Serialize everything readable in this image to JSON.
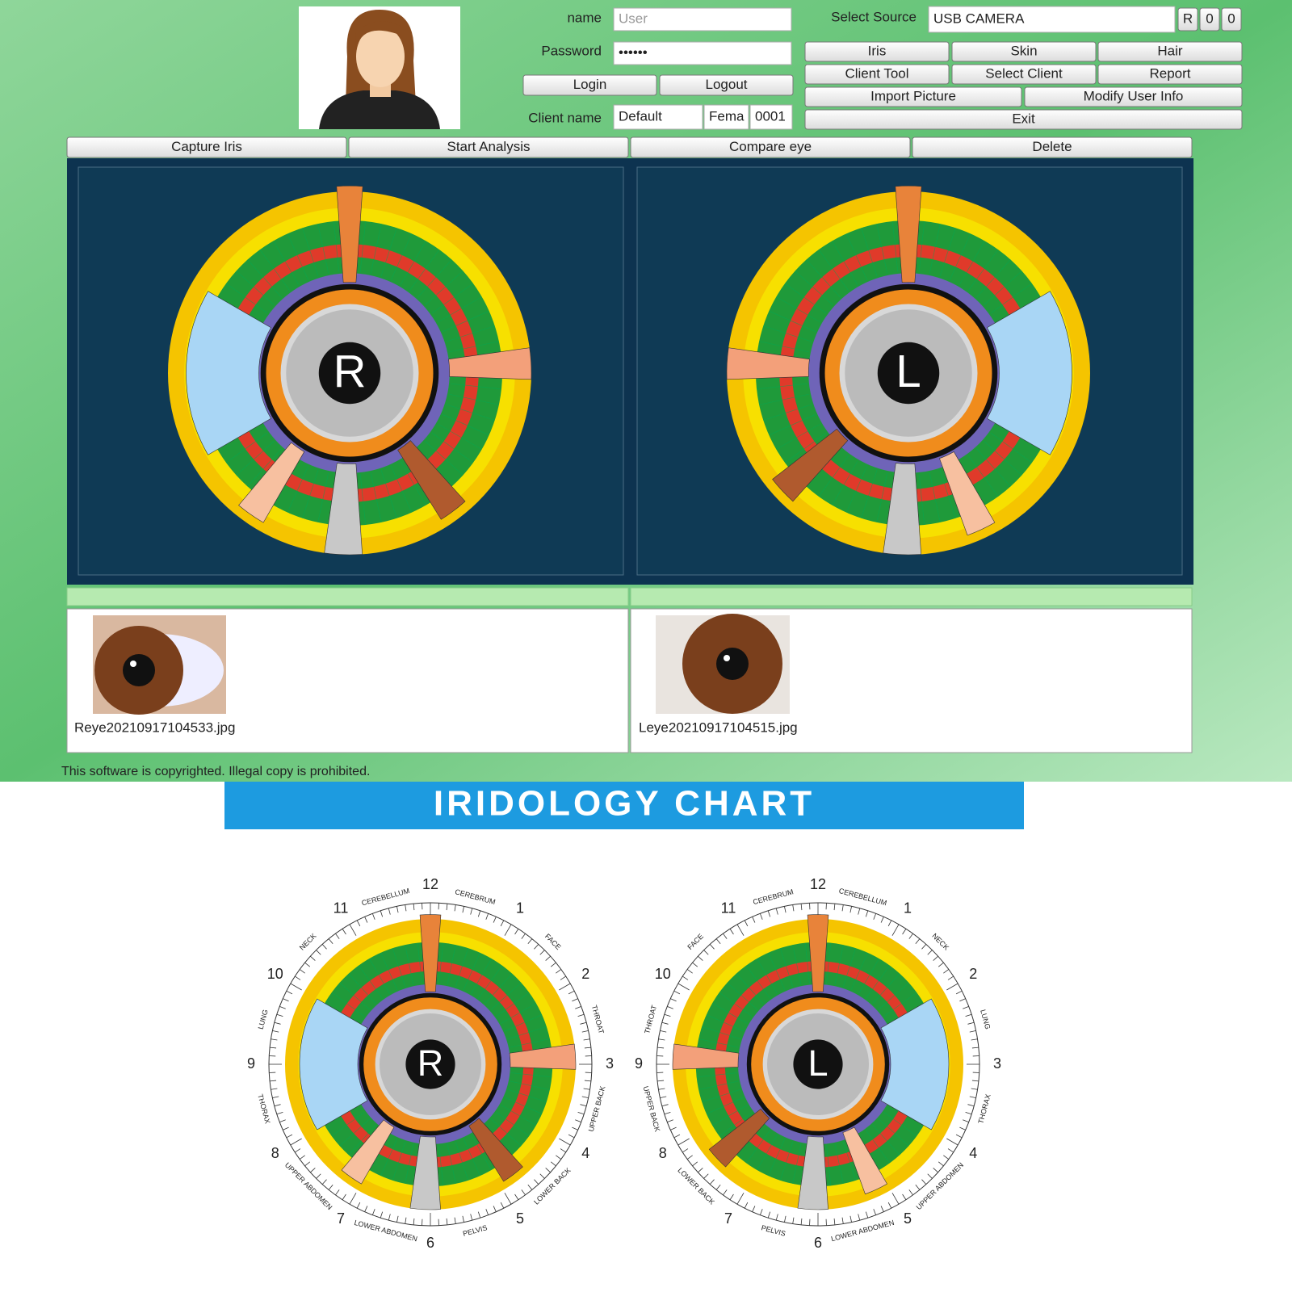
{
  "login": {
    "name_label": "name",
    "name_value": "User",
    "password_label": "Password",
    "password_value": "••••••",
    "login": "Login",
    "logout": "Logout",
    "client_label": "Client name",
    "client_name": "Default",
    "client_gender": "Fema",
    "client_id": "0001"
  },
  "source": {
    "label": "Select Source",
    "value": "USB CAMERA",
    "buttons": [
      "R",
      "0",
      "0"
    ]
  },
  "menu": [
    "Iris",
    "Skin",
    "Hair",
    "Client Tool",
    "Select Client",
    "Report",
    "Import Picture",
    "Modify User Info",
    "Exit"
  ],
  "tabs": [
    "Capture Iris",
    "Start Analysis",
    "Compare eye",
    "Delete"
  ],
  "analysis": {
    "letters": [
      "R",
      "L"
    ]
  },
  "files": [
    "Reye20210917104533.jpg",
    "Leye20210917104515.jpg"
  ],
  "copyright": "This software is copyrighted. Illegal copy is prohibited.",
  "chart": {
    "title": "IRIDOLOGY CHART",
    "hours": [
      "12",
      "1",
      "2",
      "3",
      "4",
      "5",
      "6",
      "7",
      "8",
      "9",
      "10",
      "11"
    ],
    "letters": [
      "R",
      "L"
    ],
    "right_labels": [
      "CEREBRUM",
      "FACE",
      "THROAT",
      "UPPER BACK",
      "LOWER BACK",
      "PELVIS",
      "LOWER ABDOMEN",
      "UPPER ABDOMEN",
      "THORAX",
      "LUNG",
      "NECK",
      "CEREBELLUM"
    ],
    "left_labels": [
      "CEREBELLUM",
      "NECK",
      "LUNG",
      "THORAX",
      "UPPER ABDOMEN",
      "LOWER ABDOMEN",
      "PELVIS",
      "LOWER BACK",
      "UPPER BACK",
      "THROAT",
      "FACE",
      "CEREBRUM"
    ]
  }
}
